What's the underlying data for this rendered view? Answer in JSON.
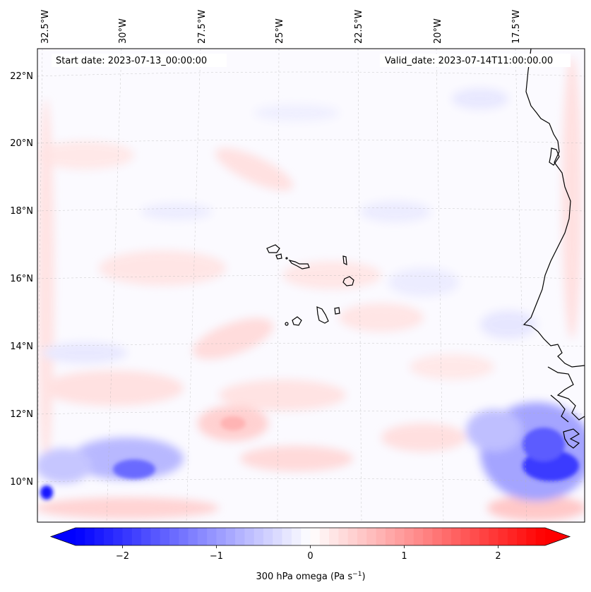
{
  "map": {
    "start_date": "Start date: 2023-07-13_00:00:00",
    "valid_date": "Valid_date: 2023-07-14T11:00:00.00",
    "lon_labels": [
      "32.5°W",
      "30°W",
      "27.5°W",
      "25°W",
      "22.5°W",
      "20°W",
      "17.5°W"
    ],
    "lat_labels": [
      "22°N",
      "20°N",
      "18°N",
      "16°N",
      "14°N",
      "12°N",
      "10°N"
    ],
    "region": "Cabo Verde / West Africa coast",
    "field": "300 hPa omega"
  },
  "colorbar": {
    "label": "300 hPa omega (Pa s",
    "label_sup": "−1",
    "label_close": ")",
    "ticks": [
      "−2",
      "−1",
      "0",
      "1",
      "2"
    ],
    "tick_values": [
      -2,
      -1,
      0,
      1,
      2
    ],
    "vmin": -2.5,
    "vmax": 2.5,
    "cmap": "bwr",
    "extend": "both"
  },
  "colors": {
    "negative": "#0000ff",
    "zero": "#ffffff",
    "positive": "#ff0000",
    "coastline": "#000000"
  }
}
